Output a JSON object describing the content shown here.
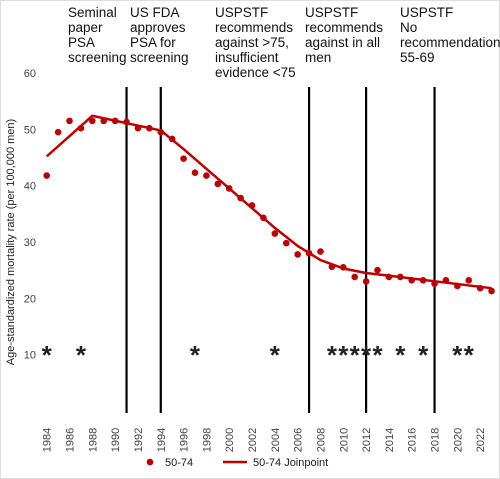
{
  "chart_data": {
    "type": "scatter",
    "y_label": "Age-standardized mortality rate (per 100,000 men)",
    "xlim": [
      1983.5,
      2023.3
    ],
    "xticks": [
      1984,
      1986,
      1988,
      1990,
      1992,
      1994,
      1996,
      1998,
      2000,
      2002,
      2004,
      2006,
      2008,
      2010,
      2012,
      2014,
      2016,
      2018,
      2020,
      2022
    ],
    "ylim": [
      0,
      60
    ],
    "yticks": [
      10,
      20,
      30,
      40,
      50,
      60
    ],
    "grid": false,
    "legend": "bottom",
    "series": [
      {
        "name": "50-74",
        "type": "scatter",
        "color": "#c00000",
        "x": [
          1984,
          1985,
          1986,
          1987,
          1988,
          1989,
          1990,
          1991,
          1992,
          1993,
          1994,
          1995,
          1996,
          1997,
          1998,
          1999,
          2000,
          2001,
          2002,
          2003,
          2004,
          2005,
          2006,
          2007,
          2008,
          2009,
          2010,
          2011,
          2012,
          2013,
          2014,
          2015,
          2016,
          2017,
          2018,
          2019,
          2020,
          2021,
          2022,
          2023
        ],
        "values": [
          41.8,
          49.5,
          51.5,
          50.2,
          51.5,
          51.5,
          51.5,
          51.3,
          50.2,
          50.2,
          49.5,
          48.3,
          44.8,
          42.3,
          41.8,
          40.3,
          39.5,
          37.8,
          36.5,
          34.3,
          31.5,
          29.8,
          27.8,
          28.0,
          28.3,
          25.6,
          25.5,
          23.8,
          23.0,
          25.0,
          23.8,
          23.8,
          23.2,
          23.2,
          22.6,
          23.2,
          22.2,
          23.2,
          21.8,
          21.3
        ]
      },
      {
        "name": "50-74 Joinpoint",
        "type": "line",
        "color": "#c00000",
        "x": [
          1984,
          1988,
          1994,
          1996,
          1998,
          2000,
          2002,
          2004,
          2006,
          2008,
          2010,
          2012,
          2023
        ],
        "values": [
          45.2,
          52.4,
          49.8,
          46.5,
          43.0,
          39.5,
          36.0,
          32.5,
          29.3,
          26.8,
          25.3,
          24.5,
          21.8
        ]
      }
    ],
    "events": [
      {
        "x": 1991,
        "lines": [
          "Seminal",
          "paper",
          "PSA",
          "screening"
        ]
      },
      {
        "x": 1994,
        "lines": [
          "US FDA",
          "approves",
          "PSA for",
          "screening"
        ]
      },
      {
        "x": 2007,
        "lines": [
          "USPSTF",
          "recommends",
          "against >75,",
          "insufficient",
          "evidence <75"
        ]
      },
      {
        "x": 2012,
        "lines": [
          "USPSTF",
          "recommends",
          "against in all",
          "men"
        ]
      },
      {
        "x": 2018,
        "lines": [
          "USPSTF",
          "No",
          "recommendation",
          "55-69"
        ]
      }
    ],
    "asterisks": {
      "label": "*",
      "x": [
        1984,
        1987,
        1997,
        2004,
        2009,
        2010,
        2011,
        2012,
        2013,
        2015,
        2017,
        2020,
        2021
      ]
    }
  }
}
